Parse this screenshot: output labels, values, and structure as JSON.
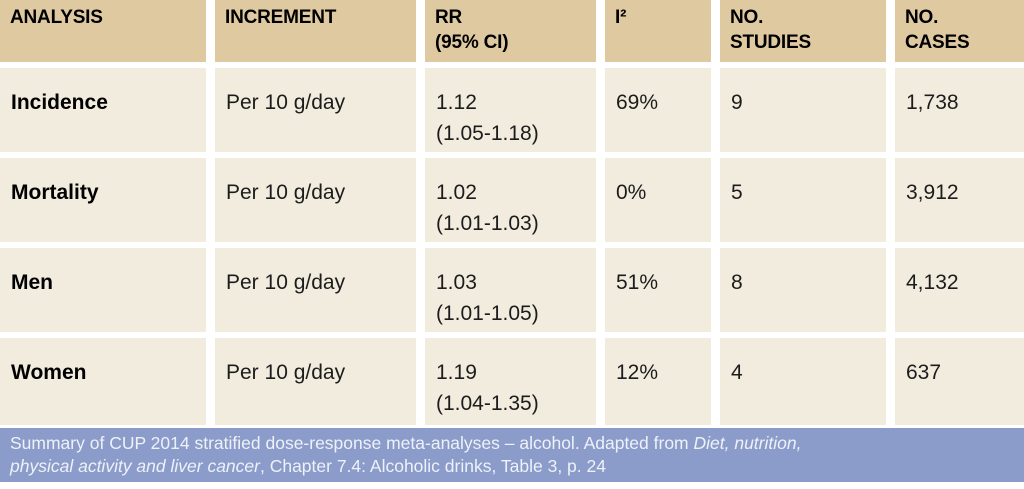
{
  "chart_data": {
    "type": "table",
    "columns": [
      "ANALYSIS",
      "INCREMENT",
      "RR\n(95% CI)",
      "I²",
      "NO.\nSTUDIES",
      "NO.\nCASES"
    ],
    "rows": [
      {
        "analysis": "Incidence",
        "increment": "Per 10 g/day",
        "rr": "1.12",
        "ci": "(1.05-1.18)",
        "i2": "69%",
        "studies": "9",
        "cases": "1,738"
      },
      {
        "analysis": "Mortality",
        "increment": "Per 10 g/day",
        "rr": "1.02",
        "ci": "(1.01-1.03)",
        "i2": "0%",
        "studies": "5",
        "cases": "3,912"
      },
      {
        "analysis": "Men",
        "increment": "Per 10 g/day",
        "rr": "1.03",
        "ci": "(1.01-1.05)",
        "i2": "51%",
        "studies": "8",
        "cases": "4,132"
      },
      {
        "analysis": "Women",
        "increment": "Per 10 g/day",
        "rr": "1.19",
        "ci": "(1.04-1.35)",
        "i2": "12%",
        "studies": "4",
        "cases": "637"
      }
    ]
  },
  "caption": {
    "seg1": "Summary of CUP 2014 stratified dose-response meta-analyses – alcohol. Adapted from ",
    "seg2_italic": "Diet, nutrition,",
    "seg3_italic": "physical activity and liver cancer",
    "seg4": ", Chapter 7.4: Alcoholic drinks, Table 3, p. 24"
  },
  "colors": {
    "header_bg": "#dfc9a0",
    "cell_bg": "#f2ecdf",
    "caption_bg": "#8b9cca",
    "caption_text": "#eef1f8"
  }
}
